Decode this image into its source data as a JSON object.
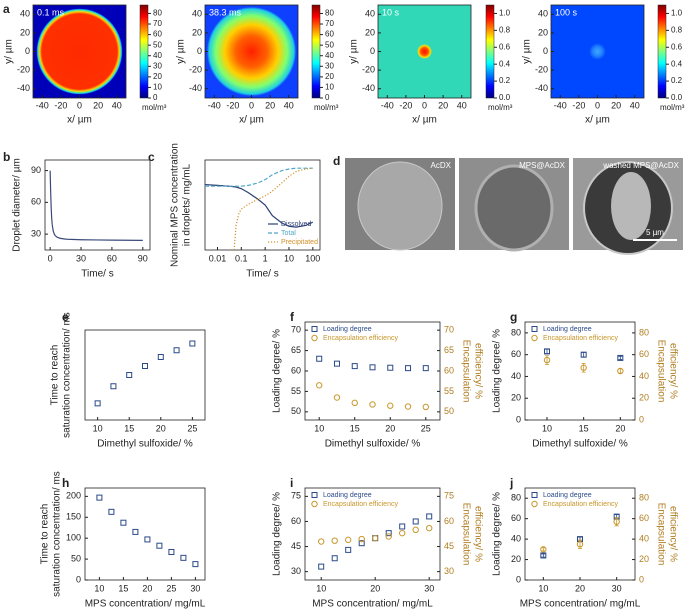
{
  "chart_data": [
    {
      "type": "heatmap",
      "panel": "a",
      "title": "0.1 ms",
      "xlabel": "x/ µm",
      "ylabel": "y/ µm",
      "xlim": [
        -50,
        50
      ],
      "ylim": [
        -50,
        50
      ],
      "xticks": [
        -40,
        -20,
        0,
        20,
        40
      ],
      "yticks": [
        -40,
        -20,
        0,
        20,
        40
      ],
      "clim": [
        0,
        88
      ],
      "cticks": [
        0,
        10,
        20,
        30,
        40,
        50,
        60,
        70,
        80
      ],
      "cbar_label": "mol/m³"
    },
    {
      "type": "heatmap",
      "title": "38.3 ms",
      "xlabel": "x/ µm",
      "ylabel": "y/ µm",
      "xlim": [
        -50,
        50
      ],
      "ylim": [
        -50,
        50
      ],
      "xticks": [
        -40,
        -20,
        0,
        20,
        40
      ],
      "yticks": [
        -40,
        -20,
        0,
        20,
        40
      ],
      "clim": [
        0,
        88
      ],
      "cticks": [
        0,
        10,
        20,
        30,
        40,
        50,
        60,
        70,
        80
      ],
      "cbar_label": "mol/m³"
    },
    {
      "type": "heatmap",
      "title": "10 s",
      "xlabel": "x/ µm",
      "ylabel": "y/ µm",
      "xlim": [
        -50,
        50
      ],
      "ylim": [
        -50,
        50
      ],
      "xticks": [
        -40,
        -20,
        0,
        20,
        40
      ],
      "yticks": [
        -40,
        -20,
        0,
        20,
        40
      ],
      "clim": [
        0,
        1.1
      ],
      "cticks": [
        {
          "value": 0,
          "label": "0.0"
        },
        0.2,
        0.4,
        0.6,
        0.8,
        {
          "value": 1,
          "label": "1.0"
        }
      ],
      "cbar_label": "mol/m³"
    },
    {
      "type": "heatmap",
      "title": "100 s",
      "xlabel": "x/ µm",
      "ylabel": "y/ µm",
      "xlim": [
        -50,
        50
      ],
      "ylim": [
        -50,
        50
      ],
      "xticks": [
        -40,
        -20,
        0,
        20,
        40
      ],
      "yticks": [
        -40,
        -20,
        0,
        20,
        40
      ],
      "clim": [
        0,
        1.1
      ],
      "cticks": [
        {
          "value": 0,
          "label": "0.0"
        },
        0.2,
        0.4,
        0.6,
        0.8,
        {
          "value": 1,
          "label": "1.0"
        }
      ],
      "cbar_label": "mol/m³"
    },
    {
      "type": "line",
      "panel": "b",
      "xlabel": "Time/ s",
      "ylabel": [
        "Droplet diameter/ µm"
      ],
      "xlim": [
        -5,
        97
      ],
      "ylim": [
        15,
        100
      ],
      "xticks": [
        0,
        30,
        60,
        90
      ],
      "yticks": [
        30,
        60,
        90
      ],
      "series": [
        {
          "color": "#3a4a7a",
          "style": "line",
          "x": [
            0,
            0.5,
            1,
            1.5,
            2,
            3,
            4,
            5,
            7,
            10,
            15,
            20,
            30,
            45,
            60,
            75,
            90
          ],
          "values": [
            90,
            70,
            55,
            45,
            39,
            33,
            30,
            28.5,
            27,
            26,
            25.3,
            25,
            24.7,
            24.5,
            24.3,
            24.2,
            24.1
          ]
        }
      ]
    },
    {
      "type": "line",
      "panel": "c",
      "xlabel": "Time/ s",
      "ylabel": [
        "Nominal MPS concentration",
        "in droplets/ mg/mL"
      ],
      "xlog": true,
      "xlim": [
        0.003,
        200
      ],
      "ylim": [
        0,
        110
      ],
      "xticks": [
        0.01,
        0.1,
        1,
        10,
        100
      ],
      "legend": "lower right",
      "series": [
        {
          "name": "Dissolved",
          "color": "#2b3f73",
          "style": "line",
          "x": [
            0.003,
            0.01,
            0.03,
            0.06,
            0.1,
            0.2,
            0.5,
            1,
            2,
            5,
            10,
            20,
            50,
            100
          ],
          "values": [
            80,
            79,
            78,
            77,
            75,
            70,
            62,
            55,
            42,
            33,
            29,
            28,
            30,
            34
          ]
        },
        {
          "name": "Total",
          "color": "#4fa8c8",
          "style": "dashed",
          "x": [
            0.003,
            0.01,
            0.03,
            0.06,
            0.1,
            0.2,
            0.5,
            1,
            2,
            5,
            10,
            20,
            50,
            100
          ],
          "values": [
            78,
            78,
            78,
            78,
            78,
            79,
            82,
            86,
            92,
            97,
            99,
            100,
            100,
            100
          ]
        },
        {
          "name": "Precipitated",
          "color": "#d0902a",
          "style": "dotted",
          "x": [
            0.05,
            0.06,
            0.08,
            0.1,
            0.2,
            0.5,
            1,
            2,
            5,
            10,
            20,
            50,
            100
          ],
          "values": [
            0,
            30,
            45,
            50,
            56,
            62,
            66,
            72,
            82,
            90,
            96,
            99,
            100
          ]
        }
      ]
    },
    {
      "type": "images",
      "panel": "d",
      "labels": [
        "AcDX",
        "MPS@AcDX",
        "washed MPS@AcDX"
      ],
      "scale_label": "5 µm"
    },
    {
      "type": "scatter",
      "panel": "e",
      "xlabel": "Dimethyl sulfoxide/ %",
      "ylabel": [
        "Time to reach",
        "saturation concentration/ ms"
      ],
      "xlim": [
        8,
        27
      ],
      "ylim": [
        0,
        200
      ],
      "xticks": [
        10,
        15,
        20,
        25
      ],
      "x": [
        10,
        12.5,
        15,
        17.5,
        20,
        22.5,
        25
      ],
      "series": [
        {
          "color": "#2b4a8a",
          "style": "square",
          "values": [
            37,
            75,
            100,
            120,
            140,
            155,
            170
          ]
        }
      ]
    },
    {
      "type": "scatter",
      "panel": "f",
      "xlabel": "Dimethyl sulfoxide/ %",
      "ylabel": [
        "Loading degree/ %"
      ],
      "y2label": [
        "Encapsulation",
        "efficiency/ %"
      ],
      "xlim": [
        8,
        27
      ],
      "ylim": [
        48,
        72
      ],
      "y2lim": [
        48,
        72
      ],
      "xticks": [
        10,
        15,
        20,
        25
      ],
      "yticks": [
        50,
        55,
        60,
        65,
        70
      ],
      "y2ticks": [
        50,
        55,
        60,
        65,
        70
      ],
      "legend": "upper left",
      "x": [
        10,
        12.5,
        15,
        17.5,
        20,
        22.5,
        25
      ],
      "series": [
        {
          "name": "Loading degree",
          "color": "#2b4a8a",
          "style": "square",
          "values": [
            63,
            61.8,
            61.2,
            60.9,
            60.8,
            60.7,
            60.7
          ]
        },
        {
          "name": "Encapsulation efficiency",
          "color": "#c8962a",
          "style": "circle",
          "axis": "y2",
          "values": [
            56.5,
            53.5,
            52.2,
            51.8,
            51.5,
            51.3,
            51.2
          ]
        }
      ]
    },
    {
      "type": "scatter",
      "panel": "g",
      "xlabel": "Dimethyl sulfoxide/ %",
      "ylabel": [
        "Loading degree/ %"
      ],
      "y2label": [
        "Encapsulation",
        "efficiency/ %"
      ],
      "xlim": [
        7,
        22
      ],
      "ylim": [
        0,
        90
      ],
      "y2lim": [
        0,
        90
      ],
      "xticks": [
        10,
        15,
        20
      ],
      "yticks": [
        0,
        20,
        40,
        60,
        80
      ],
      "y2ticks": [
        0,
        20,
        40,
        60,
        80
      ],
      "legend": "upper left",
      "x": [
        10,
        15,
        20
      ],
      "series": [
        {
          "name": "Loading degree",
          "color": "#2b4a8a",
          "style": "square",
          "values": [
            63,
            60,
            57
          ],
          "errors": [
            2,
            2,
            1.5
          ]
        },
        {
          "name": "Encapsulation efficiency",
          "color": "#c8962a",
          "style": "circle",
          "axis": "y2",
          "values": [
            55,
            48,
            45
          ],
          "errors": [
            4,
            4,
            2
          ]
        }
      ]
    },
    {
      "type": "scatter",
      "panel": "h",
      "xlabel": "MPS concentration/ mg/mL",
      "ylabel": [
        "Time to reach",
        "saturation concentration/ ms"
      ],
      "xlim": [
        7,
        32
      ],
      "ylim": [
        0,
        220
      ],
      "xticks": [
        10,
        15,
        20,
        25,
        30
      ],
      "yticks": [
        0,
        50,
        100,
        150,
        200
      ],
      "x": [
        10,
        12.5,
        15,
        17.5,
        20,
        22.5,
        25,
        27.5,
        30
      ],
      "series": [
        {
          "color": "#2b4a8a",
          "style": "square",
          "values": [
            197,
            163,
            137,
            115,
            97,
            82,
            67,
            53,
            38
          ]
        }
      ]
    },
    {
      "type": "scatter",
      "panel": "i",
      "xlabel": "MPS concentration/ mg/mL",
      "ylabel": [
        "Loading degree/ %"
      ],
      "y2label": [
        "Encapsulation",
        "efficiency/ %"
      ],
      "xlim": [
        7,
        32
      ],
      "ylim": [
        25,
        80
      ],
      "y2lim": [
        25,
        80
      ],
      "xticks": [
        10,
        20,
        30
      ],
      "yticks": [
        30,
        45,
        60,
        75
      ],
      "y2ticks": [
        30,
        45,
        60,
        75
      ],
      "legend": "upper left",
      "x": [
        10,
        12.5,
        15,
        17.5,
        20,
        22.5,
        25,
        27.5,
        30
      ],
      "series": [
        {
          "name": "Loading degree",
          "color": "#2b4a8a",
          "style": "square",
          "values": [
            33,
            38,
            43,
            47,
            50,
            53,
            57,
            60,
            63
          ]
        },
        {
          "name": "Encapsulation efficiency",
          "color": "#c8962a",
          "style": "circle",
          "axis": "y2",
          "values": [
            48,
            48.5,
            49,
            49.5,
            50,
            51,
            53,
            55,
            56
          ]
        }
      ]
    },
    {
      "type": "scatter",
      "panel": "j",
      "xlabel": "MPS concentration/ mg/mL",
      "ylabel": [
        "Loading degree/ %"
      ],
      "y2label": [
        "Encapsulation",
        "efficiency/ %"
      ],
      "xlim": [
        5,
        35
      ],
      "ylim": [
        0,
        90
      ],
      "y2lim": [
        0,
        90
      ],
      "xticks": [
        10,
        20,
        30
      ],
      "yticks": [
        0,
        20,
        40,
        60,
        80
      ],
      "y2ticks": [
        0,
        20,
        40,
        60,
        80
      ],
      "legend": "upper left",
      "x": [
        10,
        20,
        30
      ],
      "series": [
        {
          "name": "Loading degree",
          "color": "#2b4a8a",
          "style": "square",
          "values": [
            24,
            40,
            62
          ],
          "errors": [
            1.5,
            2,
            2
          ]
        },
        {
          "name": "Encapsulation efficiency",
          "color": "#c8962a",
          "style": "circle",
          "axis": "y2",
          "values": [
            30,
            35,
            57
          ],
          "errors": [
            1.5,
            4,
            4
          ]
        }
      ]
    }
  ]
}
